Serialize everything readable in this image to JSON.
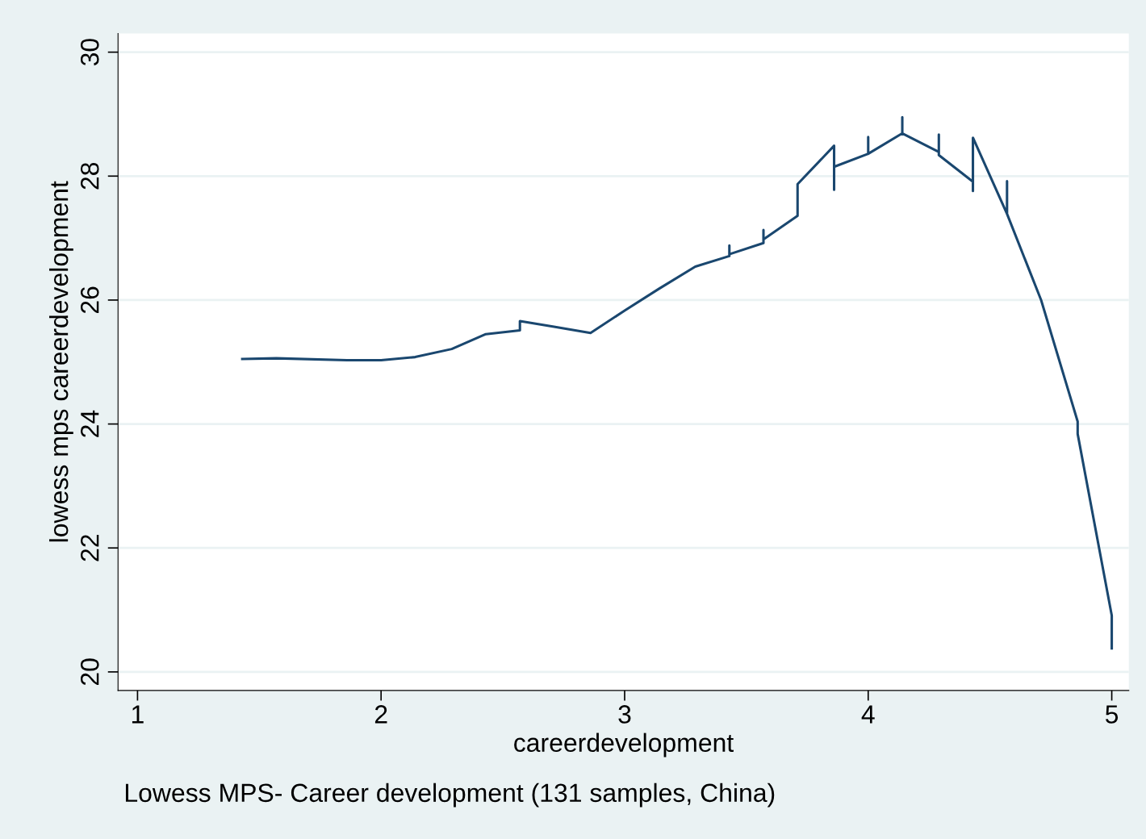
{
  "chart_data": {
    "type": "line",
    "xlabel": "careerdevelopment",
    "ylabel": "lowess mps careerdevelopment",
    "annotations": [
      "Lowess MPS- Career development (131 samples, China)"
    ],
    "series": [
      {
        "color": "#1a476f",
        "x": [
          1.43,
          1.57,
          1.86,
          2.0,
          2.14,
          2.29,
          2.43,
          2.57,
          2.57,
          2.71,
          2.86,
          3.0,
          3.14,
          3.29,
          3.43,
          3.43,
          3.43,
          3.57,
          3.57,
          3.57,
          3.71,
          3.71,
          3.86,
          3.86,
          3.86,
          4.0,
          4.0,
          4.0,
          4.14,
          4.14,
          4.14,
          4.29,
          4.29,
          4.29,
          4.43,
          4.43,
          4.43,
          4.57,
          4.57,
          4.57,
          4.71,
          4.86,
          4.86,
          5.0,
          5.0
        ],
        "values": [
          25.05,
          25.06,
          25.03,
          25.03,
          25.08,
          25.21,
          25.45,
          25.51,
          25.66,
          25.57,
          25.47,
          25.83,
          26.18,
          26.54,
          26.71,
          26.88,
          26.74,
          26.92,
          27.13,
          26.98,
          27.36,
          27.87,
          28.49,
          27.78,
          28.15,
          28.36,
          28.63,
          28.36,
          28.69,
          28.95,
          28.69,
          28.39,
          28.67,
          28.34,
          27.91,
          27.76,
          28.62,
          27.39,
          27.92,
          27.39,
          26.0,
          24.04,
          23.84,
          20.91,
          20.38
        ]
      }
    ],
    "xlim": [
      0.92,
      5.07
    ],
    "ylim": [
      19.7,
      30.3
    ],
    "xticks": [
      1,
      2,
      3,
      4,
      5
    ],
    "yticks": [
      20,
      22,
      24,
      26,
      28,
      30
    ],
    "grid": "y",
    "legend": false,
    "marker": "none",
    "line_style": "solid"
  }
}
